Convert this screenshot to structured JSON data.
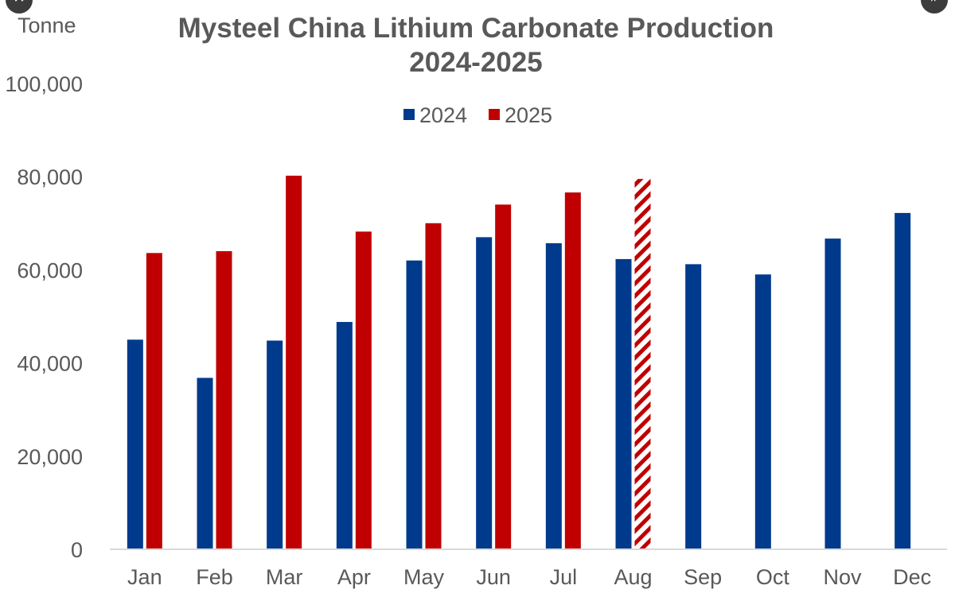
{
  "controls": {
    "close_symbol": "✕",
    "expand_symbol": "»"
  },
  "chart_data": {
    "type": "bar",
    "title": "Mysteel China Lithium Carbonate Production",
    "subtitle": "2024-2025",
    "ylabel": "Tonne",
    "xlabel": "",
    "ylim": [
      0,
      100000
    ],
    "y_ticks": [
      "0",
      "20,000",
      "40,000",
      "60,000",
      "80,000",
      "100,000"
    ],
    "y_tick_values": [
      0,
      20000,
      40000,
      60000,
      80000,
      100000
    ],
    "gridlines": false,
    "legend_position": "top-center",
    "categories": [
      "Jan",
      "Feb",
      "Mar",
      "Apr",
      "May",
      "Jun",
      "Jul",
      "Aug",
      "Sep",
      "Oct",
      "Nov",
      "Dec"
    ],
    "series": [
      {
        "name": "2024",
        "color": "#003a8c",
        "values": [
          45000,
          36800,
          44800,
          48800,
          62000,
          67000,
          65700,
          62300,
          61200,
          59000,
          66700,
          72200
        ]
      },
      {
        "name": "2025",
        "color": "#c00000",
        "values": [
          63600,
          64000,
          80200,
          68200,
          70000,
          74000,
          76600,
          79500,
          null,
          null,
          null,
          null
        ],
        "estimated_categories": [
          "Aug"
        ]
      }
    ]
  }
}
